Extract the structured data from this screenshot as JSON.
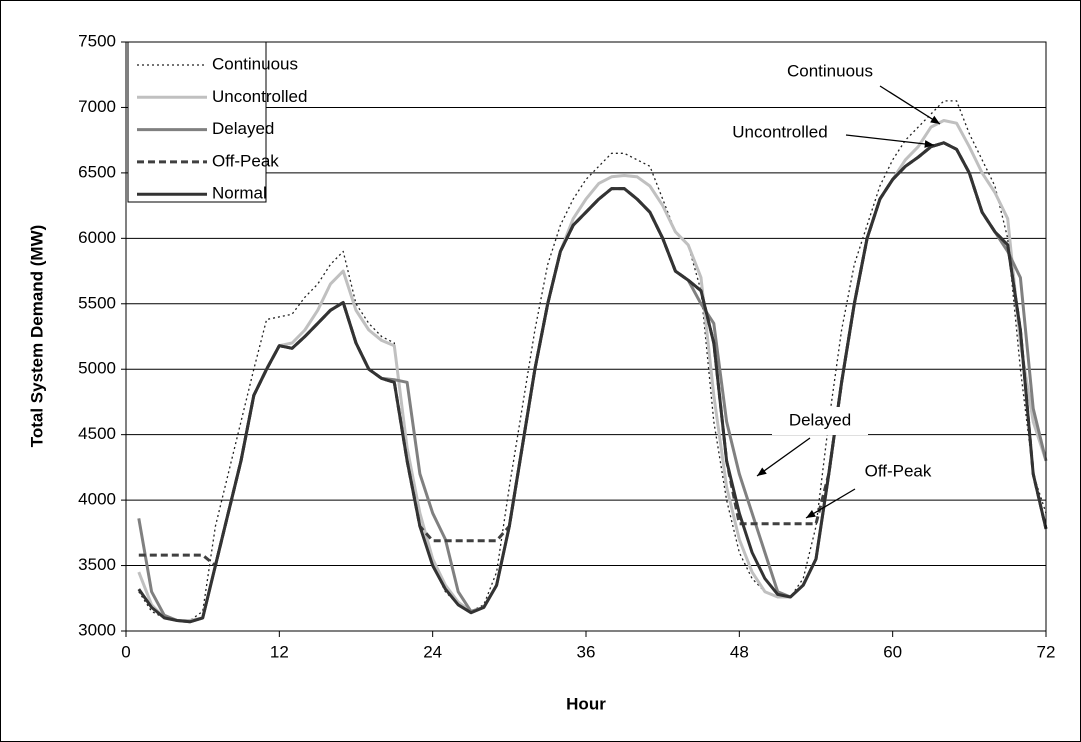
{
  "chart_data": {
    "type": "line",
    "y_label": "Total System Demand (MW)",
    "x_label": "Hour",
    "x": [
      1,
      2,
      3,
      4,
      5,
      6,
      7,
      8,
      9,
      10,
      11,
      12,
      13,
      14,
      15,
      16,
      17,
      18,
      19,
      20,
      21,
      22,
      23,
      24,
      25,
      26,
      27,
      28,
      29,
      30,
      31,
      32,
      33,
      34,
      35,
      36,
      37,
      38,
      39,
      40,
      41,
      42,
      43,
      44,
      45,
      46,
      47,
      48,
      49,
      50,
      51,
      52,
      53,
      54,
      55,
      56,
      57,
      58,
      59,
      60,
      61,
      62,
      63,
      64,
      65,
      66,
      67,
      68,
      69,
      70,
      71,
      72
    ],
    "series": [
      {
        "name": "Continuous",
        "color": "#222222",
        "style": "dotted",
        "values": [
          3300,
          3150,
          3100,
          3080,
          3080,
          3150,
          3800,
          4200,
          4600,
          5000,
          5380,
          5400,
          5420,
          5550,
          5650,
          5800,
          5900,
          5500,
          5350,
          5250,
          5200,
          4300,
          3800,
          3500,
          3300,
          3200,
          3150,
          3200,
          3450,
          4100,
          4700,
          5300,
          5800,
          6100,
          6300,
          6450,
          6550,
          6650,
          6650,
          6600,
          6550,
          6300,
          6050,
          5950,
          5600,
          4600,
          4000,
          3600,
          3400,
          3300,
          3260,
          3260,
          3400,
          3800,
          4600,
          5300,
          5800,
          6100,
          6400,
          6600,
          6750,
          6850,
          6950,
          7050,
          7050,
          6800,
          6600,
          6400,
          6000,
          5000,
          4200,
          3900
        ]
      },
      {
        "name": "Uncontrolled",
        "color": "#c0c0c0",
        "style": "solid",
        "values": [
          3450,
          3200,
          3100,
          3080,
          3080,
          3100,
          3500,
          3900,
          4300,
          4800,
          5000,
          5180,
          5200,
          5300,
          5450,
          5650,
          5750,
          5450,
          5300,
          5220,
          5180,
          4400,
          3900,
          3550,
          3350,
          3220,
          3150,
          3180,
          3350,
          3800,
          4400,
          5000,
          5500,
          5900,
          6150,
          6300,
          6420,
          6470,
          6480,
          6470,
          6400,
          6250,
          6050,
          5950,
          5700,
          4800,
          4100,
          3700,
          3450,
          3300,
          3260,
          3260,
          3350,
          3550,
          4200,
          4900,
          5500,
          6000,
          6300,
          6450,
          6600,
          6700,
          6850,
          6900,
          6880,
          6700,
          6500,
          6350,
          6150,
          5200,
          4600,
          4300
        ]
      },
      {
        "name": "Delayed",
        "color": "#808080",
        "style": "solid",
        "values": [
          3860,
          3300,
          3120,
          3080,
          3070,
          3100,
          3500,
          3900,
          4300,
          4800,
          5000,
          5180,
          5160,
          5250,
          5350,
          5450,
          5510,
          5200,
          5000,
          4930,
          4920,
          4900,
          4200,
          3900,
          3700,
          3300,
          3150,
          3180,
          3350,
          3800,
          4400,
          5000,
          5500,
          5900,
          6100,
          6200,
          6300,
          6380,
          6380,
          6300,
          6200,
          6000,
          5750,
          5680,
          5500,
          5350,
          4600,
          4200,
          3900,
          3600,
          3300,
          3260,
          3350,
          3550,
          4200,
          4900,
          5500,
          6000,
          6300,
          6450,
          6550,
          6620,
          6700,
          6730,
          6680,
          6500,
          6200,
          6050,
          5900,
          5700,
          4700,
          4300
        ]
      },
      {
        "name": "Off-Peak",
        "color": "#404040",
        "style": "dashed",
        "values": [
          3580,
          3580,
          3580,
          3580,
          3580,
          3580,
          3500,
          3900,
          4300,
          4800,
          5000,
          5180,
          5160,
          5250,
          5350,
          5450,
          5510,
          5200,
          5000,
          4930,
          4900,
          4300,
          3800,
          3690,
          3690,
          3690,
          3690,
          3690,
          3690,
          3800,
          4400,
          5000,
          5500,
          5900,
          6100,
          6200,
          6300,
          6380,
          6380,
          6300,
          6200,
          6000,
          5750,
          5680,
          5600,
          5200,
          4300,
          3820,
          3820,
          3820,
          3820,
          3820,
          3820,
          3820,
          4200,
          4900,
          5500,
          6000,
          6300,
          6450,
          6550,
          6620,
          6700,
          6730,
          6680,
          6500,
          6200,
          6050,
          5950,
          5300,
          4200,
          3780
        ]
      },
      {
        "name": "Normal",
        "color": "#333333",
        "style": "solid",
        "values": [
          3320,
          3180,
          3100,
          3080,
          3070,
          3100,
          3500,
          3900,
          4300,
          4800,
          5000,
          5180,
          5160,
          5250,
          5350,
          5450,
          5510,
          5200,
          5000,
          4930,
          4900,
          4300,
          3800,
          3500,
          3320,
          3200,
          3140,
          3180,
          3350,
          3800,
          4400,
          5000,
          5500,
          5900,
          6100,
          6200,
          6300,
          6380,
          6380,
          6300,
          6200,
          6000,
          5750,
          5680,
          5600,
          5200,
          4300,
          3900,
          3600,
          3400,
          3280,
          3260,
          3350,
          3550,
          4200,
          4900,
          5500,
          6000,
          6300,
          6450,
          6550,
          6620,
          6700,
          6730,
          6680,
          6500,
          6200,
          6050,
          5950,
          5300,
          4200,
          3780
        ]
      }
    ],
    "xlim": [
      0,
      72
    ],
    "xticks": [
      0,
      12,
      24,
      36,
      48,
      60,
      72
    ],
    "ylim": [
      3000,
      7500
    ],
    "yticks": [
      3000,
      3500,
      4000,
      4500,
      5000,
      5500,
      6000,
      6500,
      7000,
      7500
    ],
    "grid": true,
    "legend": "upper left",
    "annotations": [
      "Continuous",
      "Uncontrolled",
      "Delayed",
      "Off-Peak"
    ]
  }
}
